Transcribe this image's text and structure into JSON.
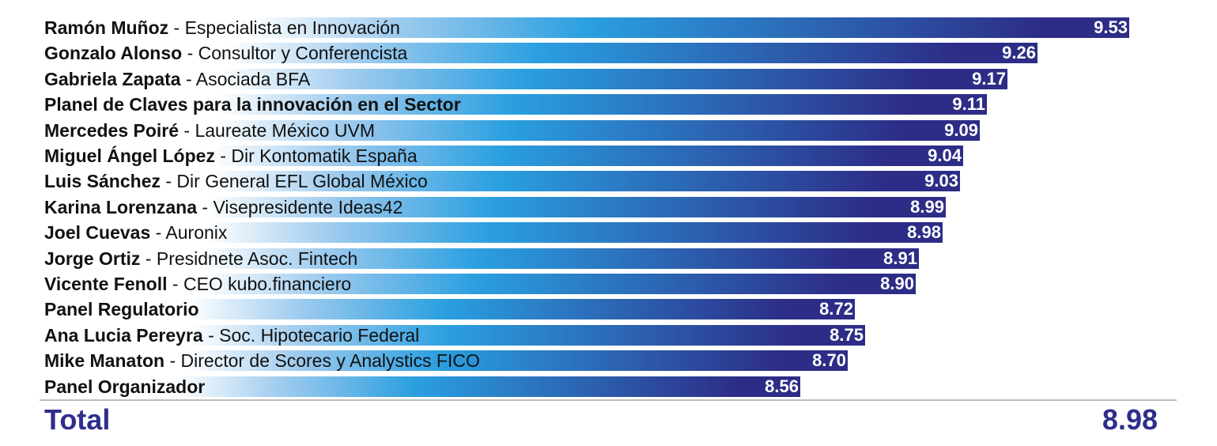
{
  "chart_data": {
    "type": "bar",
    "orientation": "horizontal",
    "rows": [
      {
        "name": "Ramón Muñoz",
        "role": " - Especialista en Innovación",
        "value": 9.53,
        "value_label": "9.53"
      },
      {
        "name": "Gonzalo Alonso",
        "role": " - Consultor y Conferencista",
        "value": 9.26,
        "value_label": "9.26"
      },
      {
        "name": "Gabriela Zapata",
        "role": " - Asociada BFA",
        "value": 9.17,
        "value_label": "9.17"
      },
      {
        "name": "Planel de Claves para la innovación en el Sector",
        "role": "",
        "value": 9.11,
        "value_label": "9.11"
      },
      {
        "name": "Mercedes Poiré",
        "role": " - Laureate México UVM",
        "value": 9.09,
        "value_label": "9.09"
      },
      {
        "name": "Miguel Ángel López",
        "role": " - Dir Kontomatik España",
        "value": 9.04,
        "value_label": "9.04"
      },
      {
        "name": "Luis Sánchez",
        "role": " - Dir General EFL Global México",
        "value": 9.03,
        "value_label": "9.03"
      },
      {
        "name": "Karina Lorenzana",
        "role": " - Visepresidente Ideas42",
        "value": 8.99,
        "value_label": "8.99"
      },
      {
        "name": "Joel Cuevas",
        "role": " - Auronix",
        "value": 8.98,
        "value_label": "8.98"
      },
      {
        "name": "Jorge Ortiz",
        "role": " - Presidnete Asoc. Fintech",
        "value": 8.91,
        "value_label": "8.91"
      },
      {
        "name": "Vicente Fenoll",
        "role": " - CEO kubo.financiero",
        "value": 8.9,
        "value_label": "8.90"
      },
      {
        "name": "Panel Regulatorio",
        "role": "",
        "value": 8.72,
        "value_label": "8.72"
      },
      {
        "name": "Ana Lucia Pereyra",
        "role": " - Soc. Hipotecario Federal",
        "value": 8.75,
        "value_label": "8.75"
      },
      {
        "name": "Mike Manaton",
        "role": " - Director de Scores y Analystics FICO",
        "value": 8.7,
        "value_label": "8.70"
      },
      {
        "name": "Panel Organizador",
        "role": "",
        "value": 8.56,
        "value_label": "8.56"
      }
    ],
    "xlim": [
      6.2,
      9.6
    ],
    "grid": false,
    "legend": "none",
    "colors": {
      "start": "#ffffff",
      "light": "#9fcbee",
      "mid": "#2a9fe0",
      "dark": "#2d2d87"
    }
  },
  "total": {
    "label": "Total",
    "value": "8.98"
  }
}
